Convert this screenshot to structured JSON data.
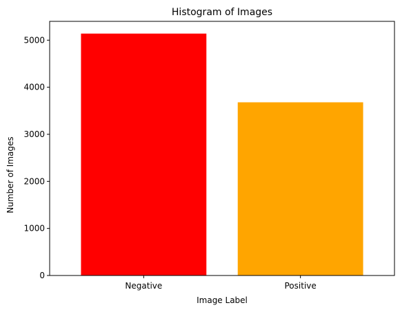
{
  "chart_data": {
    "type": "bar",
    "title": "Histogram of Images",
    "xlabel": "Image Label",
    "ylabel": "Number of Images",
    "categories": [
      "Negative",
      "Positive"
    ],
    "values": [
      5140,
      3680
    ],
    "bar_colors": [
      "#ff0000",
      "#ffa500"
    ],
    "ylim": [
      0,
      5400
    ],
    "yticks": [
      0,
      1000,
      2000,
      3000,
      4000,
      5000
    ],
    "grid": false,
    "legend": "none"
  }
}
